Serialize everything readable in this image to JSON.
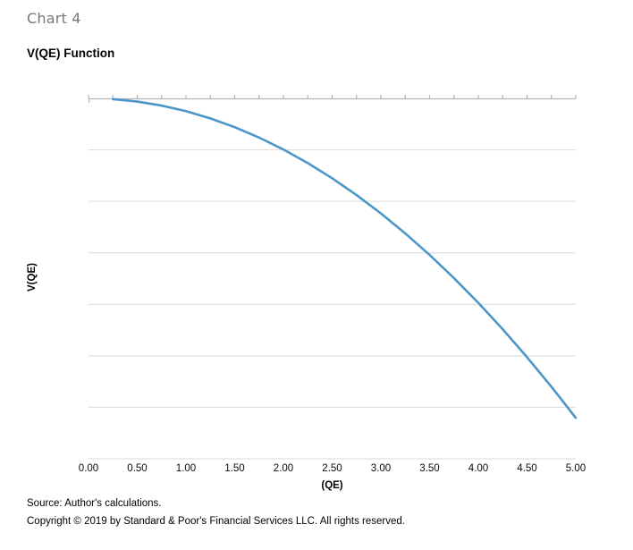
{
  "page": {
    "kicker": "Chart 4",
    "title": "V(QE) Function"
  },
  "chart_data": {
    "type": "line",
    "title": "V(QE) Function",
    "xlabel": "(QE)",
    "ylabel": "V(QE)",
    "xlim": [
      0,
      5
    ],
    "ylim": [
      -28.2,
      0
    ],
    "x_ticks": [
      {
        "value": 0.0,
        "label": "0.00"
      },
      {
        "value": 0.5,
        "label": "0.50"
      },
      {
        "value": 1.0,
        "label": "1.00"
      },
      {
        "value": 1.5,
        "label": "1.50"
      },
      {
        "value": 2.0,
        "label": "2.00"
      },
      {
        "value": 2.5,
        "label": "2.50"
      },
      {
        "value": 3.0,
        "label": "3.00"
      },
      {
        "value": 3.5,
        "label": "3.50"
      },
      {
        "value": 4.0,
        "label": "4.00"
      },
      {
        "value": 4.5,
        "label": "4.50"
      },
      {
        "value": 5.0,
        "label": "5.00"
      }
    ],
    "minor_tick_step": 0.25,
    "y_tick_labels": [],
    "grid": "horizontal",
    "gridline_count": 7,
    "legend": "none",
    "series": [
      {
        "name": "V(QE)",
        "x": [
          0.25,
          0.5,
          0.75,
          1.0,
          1.25,
          1.5,
          1.75,
          2.0,
          2.25,
          2.5,
          2.75,
          3.0,
          3.25,
          3.5,
          3.75,
          4.0,
          4.25,
          4.5,
          4.75,
          5.0
        ],
        "y": [
          -0.063,
          -0.25,
          -0.563,
          -1.0,
          -1.563,
          -2.25,
          -3.063,
          -4.0,
          -5.063,
          -6.25,
          -7.563,
          -9.0,
          -10.563,
          -12.25,
          -14.063,
          -16.0,
          -18.063,
          -20.25,
          -22.563,
          -25.0
        ]
      }
    ]
  },
  "colors": {
    "line": "#4d96c8",
    "gridline": "#d9d9d9",
    "axis": "#b3b6b8",
    "kicker_text": "#75787e"
  },
  "footer": {
    "source": "Source: Author's calculations.",
    "copyright": "Copyright © 2019 by Standard & Poor's Financial Services LLC. All rights reserved."
  }
}
